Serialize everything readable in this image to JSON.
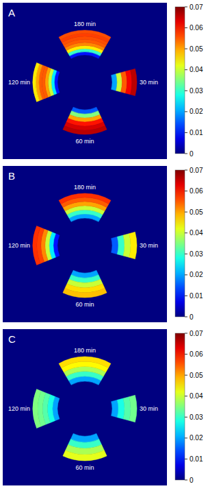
{
  "chart_data": [
    {
      "type": "heatmap",
      "title": "A",
      "sectors": [
        {
          "label": "180 min",
          "values": [
            0.01,
            0.03,
            0.045,
            0.052,
            0.055,
            0.056,
            0.057,
            0.056
          ]
        },
        {
          "label": "120 min",
          "values": [
            0.01,
            0.025,
            0.04,
            0.05,
            0.055,
            0.055,
            0.05,
            0.045
          ]
        },
        {
          "label": "30 min",
          "values": [
            0.02,
            0.04,
            0.055,
            0.062,
            0.066
          ]
        },
        {
          "label": "60 min",
          "values": [
            0.015,
            0.035,
            0.05,
            0.06,
            0.064,
            0.066
          ]
        }
      ],
      "colorbar": {
        "range": [
          0,
          0.07
        ],
        "ticks": [
          0,
          0.01,
          0.02,
          0.03,
          0.04,
          0.05,
          0.06,
          0.07
        ]
      }
    },
    {
      "type": "heatmap",
      "title": "B",
      "sectors": [
        {
          "label": "180 min",
          "values": [
            0.02,
            0.03,
            0.04,
            0.05,
            0.055,
            0.058
          ]
        },
        {
          "label": "120 min",
          "values": [
            0.01,
            0.025,
            0.04,
            0.052,
            0.057,
            0.058
          ]
        },
        {
          "label": "30 min",
          "values": [
            0.015,
            0.03,
            0.04,
            0.045
          ]
        },
        {
          "label": "60 min",
          "values": [
            0.02,
            0.03,
            0.04,
            0.046,
            0.048
          ]
        }
      ],
      "colorbar": {
        "range": [
          0,
          0.07
        ],
        "ticks": [
          0,
          0.01,
          0.02,
          0.03,
          0.04,
          0.05,
          0.06,
          0.07
        ]
      }
    },
    {
      "type": "heatmap",
      "title": "C",
      "sectors": [
        {
          "label": "180 min",
          "values": [
            0.02,
            0.03,
            0.038,
            0.044,
            0.046
          ]
        },
        {
          "label": "120 min",
          "values": [
            0.02,
            0.028,
            0.032,
            0.034,
            0.035
          ]
        },
        {
          "label": "30 min",
          "values": [
            0.02,
            0.028,
            0.032,
            0.034
          ]
        },
        {
          "label": "60 min",
          "values": [
            0.02,
            0.03,
            0.038,
            0.042
          ]
        }
      ],
      "colorbar": {
        "range": [
          0,
          0.07
        ],
        "ticks": [
          0,
          0.01,
          0.02,
          0.03,
          0.04,
          0.05,
          0.06,
          0.07
        ]
      }
    }
  ]
}
